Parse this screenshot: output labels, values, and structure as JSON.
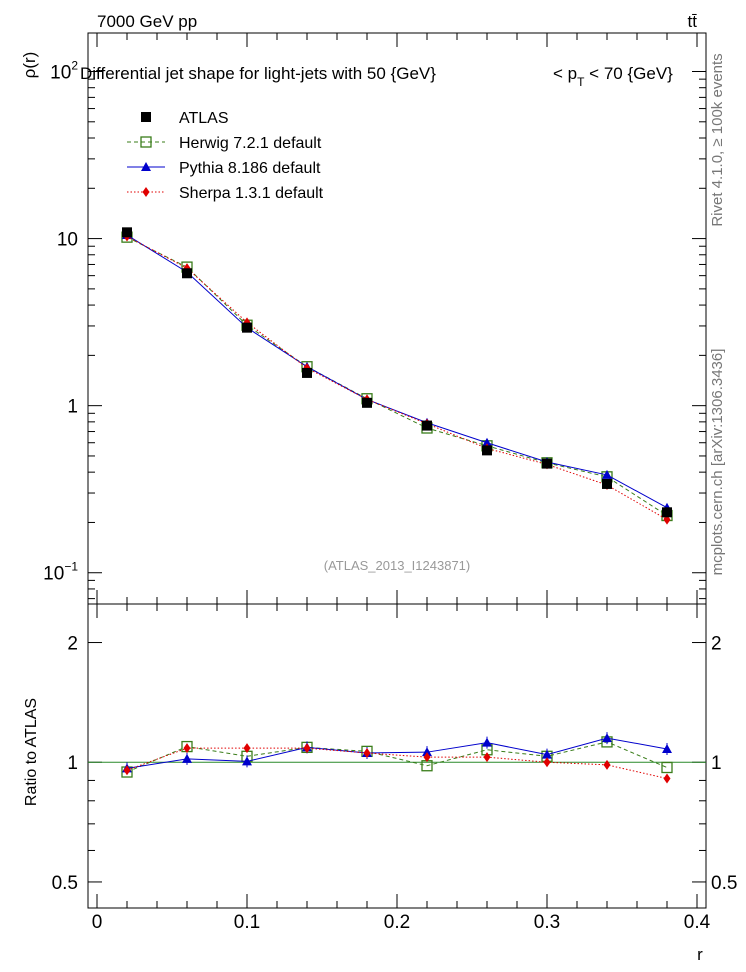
{
  "header": {
    "energy_label": "7000 GeV pp",
    "process_label": "tt̄"
  },
  "side_labels": {
    "rivet": "Rivet 4.1.0, ≥ 100k events",
    "mcplots": "mcplots.cern.ch [arXiv:1306.3436]"
  },
  "chart_data": [
    {
      "type": "line",
      "panel": "main",
      "title": "Differential jet shape for light-jets with 50 {GeV}     < p_T < 70 {GeV}",
      "title_parts": {
        "main": "Differential jet shape for light-jets with 50 {GeV}",
        "range_pre": "< p",
        "range_sub": "T",
        "range_post": " < 70 {GeV}"
      },
      "xlabel": "r",
      "ylabel": "ρ(r)",
      "yscale": "log",
      "xlim": [
        -0.006,
        0.406
      ],
      "ylim": [
        0.065,
        170
      ],
      "y_tick_labels": [
        {
          "value": 0.1,
          "base": "10",
          "exp": "−1"
        },
        {
          "value": 1,
          "base": "1",
          "exp": ""
        },
        {
          "value": 10,
          "base": "10",
          "exp": ""
        },
        {
          "value": 100,
          "base": "10",
          "exp": "2"
        }
      ],
      "watermark": "(ATLAS_2013_I1243871)",
      "x": [
        0.02,
        0.06,
        0.1,
        0.14,
        0.18,
        0.22,
        0.26,
        0.3,
        0.34,
        0.38
      ],
      "series": [
        {
          "name": "ATLAS",
          "color": "#000000",
          "marker": "square-filled",
          "line": "none",
          "values": [
            10.9,
            6.2,
            2.93,
            1.57,
            1.04,
            0.76,
            0.54,
            0.45,
            0.34,
            0.23
          ]
        },
        {
          "name": "Herwig 7.2.1 default",
          "color": "#3a7d1a",
          "marker": "square-open",
          "line": "dashed",
          "values": [
            10.2,
            6.75,
            3.03,
            1.71,
            1.1,
            0.735,
            0.575,
            0.455,
            0.375,
            0.22
          ]
        },
        {
          "name": "Pythia 8.186 default",
          "color": "#0000cc",
          "marker": "triangle",
          "line": "solid",
          "values": [
            10.5,
            6.3,
            2.93,
            1.71,
            1.09,
            0.79,
            0.6,
            0.46,
            0.385,
            0.245
          ]
        },
        {
          "name": "Sherpa 1.3.1 default",
          "color": "#e00000",
          "marker": "diamond",
          "line": "dotted",
          "values": [
            10.3,
            6.65,
            3.15,
            1.68,
            1.09,
            0.78,
            0.555,
            0.445,
            0.335,
            0.208
          ]
        }
      ]
    },
    {
      "type": "line",
      "panel": "ratio",
      "ylabel": "Ratio to ATLAS",
      "xlabel": "r",
      "ylim": [
        0.43,
        2.5
      ],
      "yscale": "log",
      "y_tick_labels": [
        "0.5",
        "1",
        "2"
      ],
      "x_tick_labels": [
        "0",
        "0.1",
        "0.2",
        "0.3",
        "0.4"
      ],
      "x": [
        0.02,
        0.06,
        0.1,
        0.14,
        0.18,
        0.22,
        0.26,
        0.3,
        0.34,
        0.38
      ],
      "series": [
        {
          "name": "Herwig 7.2.1 default",
          "color": "#3a7d1a",
          "values": [
            0.945,
            1.095,
            1.035,
            1.09,
            1.065,
            0.98,
            1.075,
            1.035,
            1.125,
            0.97
          ]
        },
        {
          "name": "Pythia 8.186 default",
          "color": "#0000cc",
          "values": [
            0.965,
            1.02,
            1.005,
            1.09,
            1.055,
            1.06,
            1.12,
            1.045,
            1.15,
            1.08
          ]
        },
        {
          "name": "Sherpa 1.3.1 default",
          "color": "#e00000",
          "values": [
            0.955,
            1.085,
            1.085,
            1.085,
            1.055,
            1.03,
            1.03,
            1.0,
            0.985,
            0.91
          ]
        }
      ]
    }
  ]
}
